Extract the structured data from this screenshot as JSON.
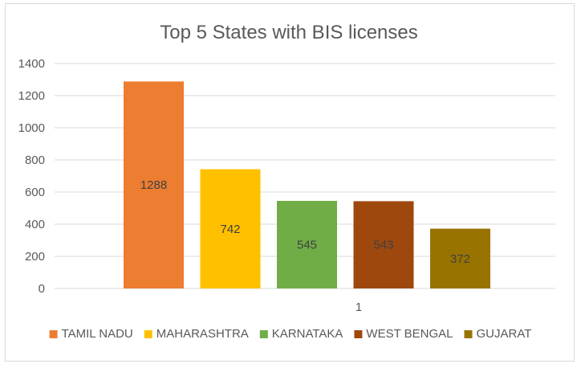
{
  "chart_data": {
    "type": "bar",
    "title": "Top 5 States with BIS licenses",
    "xlabel": "",
    "ylabel": "",
    "categories": [
      "1"
    ],
    "ylim": [
      0,
      1400
    ],
    "yticks": [
      0,
      200,
      400,
      600,
      800,
      1000,
      1200,
      1400
    ],
    "grid": true,
    "legend_position": "bottom",
    "series": [
      {
        "name": "TAMIL NADU",
        "values": [
          1288
        ],
        "color": "#ED7D31"
      },
      {
        "name": "MAHARASHTRA",
        "values": [
          742
        ],
        "color": "#FFC000"
      },
      {
        "name": "KARNATAKA",
        "values": [
          545
        ],
        "color": "#70AD47"
      },
      {
        "name": "WEST BENGAL",
        "values": [
          543
        ],
        "color": "#9E480E"
      },
      {
        "name": "GUJARAT",
        "values": [
          372
        ],
        "color": "#997300"
      }
    ]
  }
}
